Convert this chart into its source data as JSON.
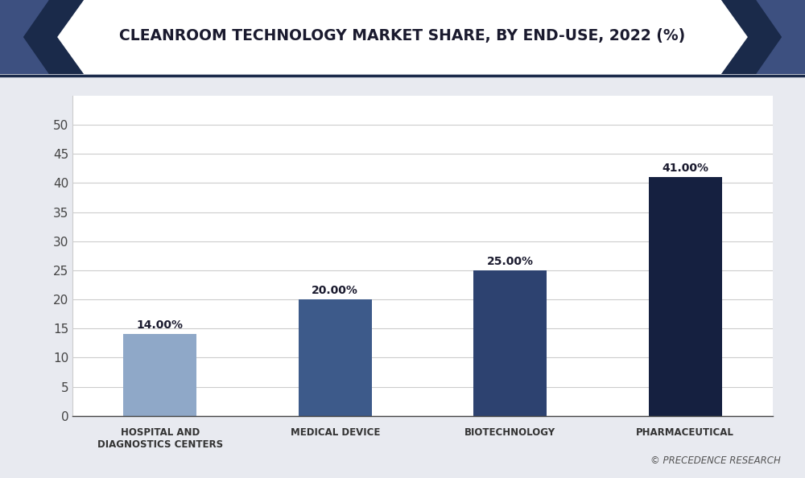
{
  "title": "CLEANROOM TECHNOLOGY MARKET SHARE, BY END-USE, 2022 (%)",
  "categories": [
    "HOSPITAL AND\nDIAGNOSTICS CENTERS",
    "MEDICAL DEVICE",
    "BIOTECHNOLOGY",
    "PHARMACEUTICAL"
  ],
  "values": [
    14.0,
    20.0,
    25.0,
    41.0
  ],
  "labels": [
    "14.00%",
    "20.00%",
    "25.00%",
    "41.00%"
  ],
  "bar_colors": [
    "#8fa8c8",
    "#3d5a8a",
    "#2d4270",
    "#152040"
  ],
  "background_color": "#e8eaf0",
  "plot_bg_color": "#ffffff",
  "grid_color": "#cccccc",
  "yticks": [
    0,
    5,
    10,
    15,
    20,
    25,
    30,
    35,
    40,
    45,
    50
  ],
  "ylim": [
    0,
    55
  ],
  "ylabel_fontsize": 11,
  "xlabel_fontsize": 8.5,
  "title_fontsize": 13.5,
  "label_fontsize": 10,
  "watermark": "© PRECEDENCE RESEARCH",
  "header_dark_color": "#1a2a4a",
  "header_mid_color": "#3d5080",
  "border_color": "#1a2a4a"
}
